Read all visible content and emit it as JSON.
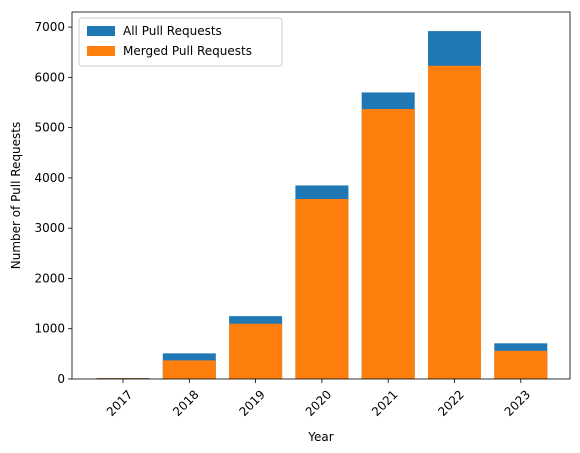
{
  "chart_data": {
    "type": "bar",
    "title": "",
    "xlabel": "Year",
    "ylabel": "Number of Pull Requests",
    "categories": [
      "2017",
      "2018",
      "2019",
      "2020",
      "2021",
      "2022",
      "2023"
    ],
    "series": [
      {
        "name": "All Pull Requests",
        "color": "#1f77b4",
        "values": [
          20,
          510,
          1250,
          3850,
          5700,
          6920,
          710
        ]
      },
      {
        "name": "Merged Pull Requests",
        "color": "#ff7f0e",
        "values": [
          15,
          370,
          1100,
          3580,
          5370,
          6230,
          560
        ]
      }
    ],
    "ylim": [
      0,
      7300
    ],
    "yticks": [
      0,
      1000,
      2000,
      3000,
      4000,
      5000,
      6000,
      7000
    ],
    "grid": false,
    "legend_position": "top-left",
    "overlay": true
  }
}
